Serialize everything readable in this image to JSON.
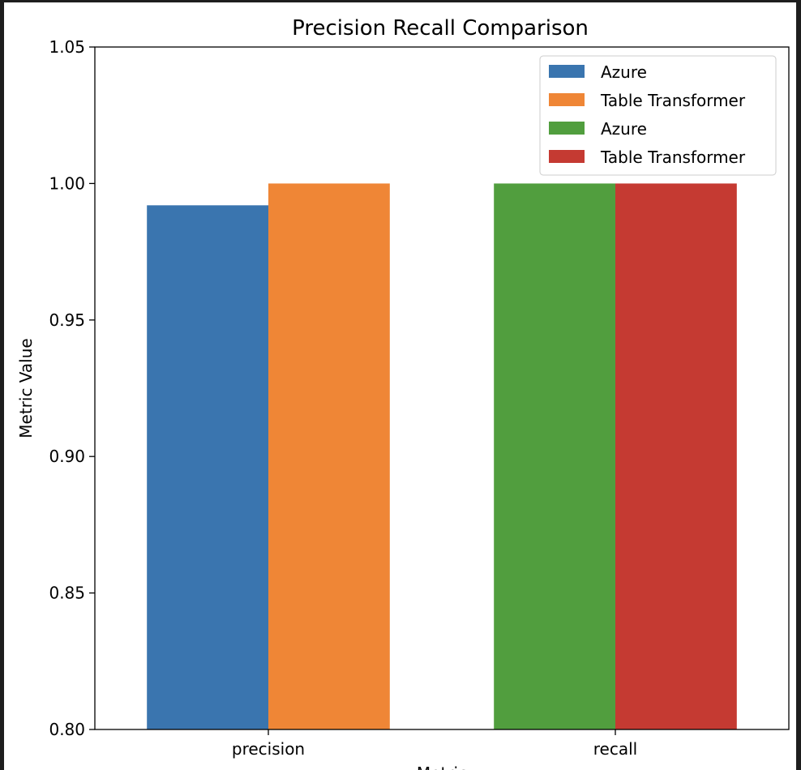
{
  "chart_data": {
    "type": "bar",
    "title": "Precision Recall Comparison",
    "xlabel": "Metric",
    "ylabel": "Metric Value",
    "categories": [
      "precision",
      "recall"
    ],
    "ylim": [
      0.8,
      1.05
    ],
    "yticks": [
      "0.80",
      "0.85",
      "0.90",
      "0.95",
      "1.00",
      "1.05"
    ],
    "bars": [
      {
        "series": "Azure",
        "category": "precision",
        "value": 0.992,
        "color": "#3a75af"
      },
      {
        "series": "Table Transformer",
        "category": "precision",
        "value": 1.0,
        "color": "#ef8636"
      },
      {
        "series": "Azure",
        "category": "recall",
        "value": 1.0,
        "color": "#519e3e"
      },
      {
        "series": "Table Transformer",
        "category": "recall",
        "value": 1.0,
        "color": "#c53a32"
      }
    ],
    "legend": {
      "position": "top-right",
      "entries": [
        {
          "label": "Azure",
          "color": "#3a75af"
        },
        {
          "label": "Table Transformer",
          "color": "#ef8636"
        },
        {
          "label": "Azure",
          "color": "#519e3e"
        },
        {
          "label": "Table Transformer",
          "color": "#c53a32"
        }
      ]
    },
    "grid": false
  }
}
